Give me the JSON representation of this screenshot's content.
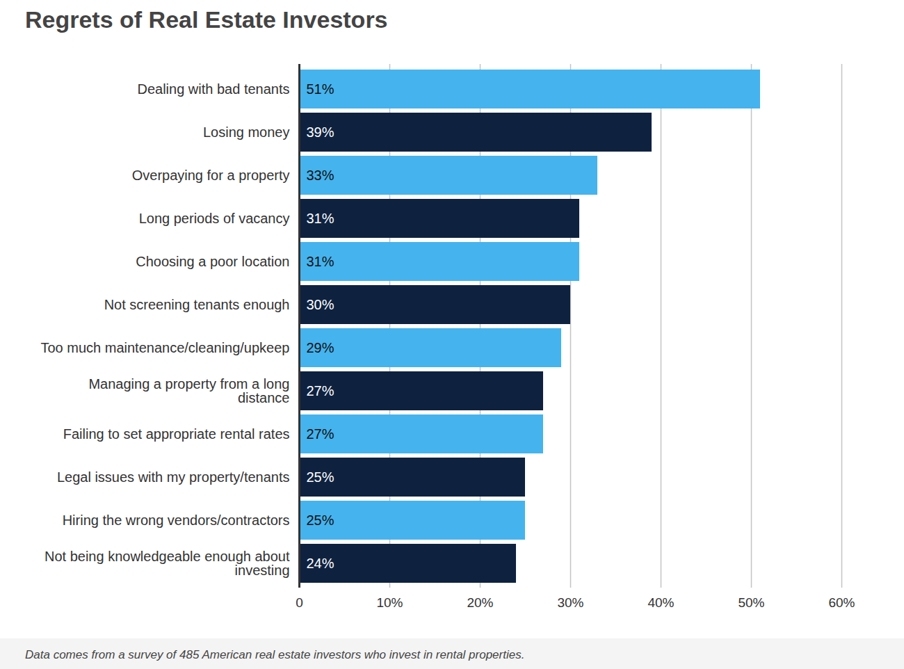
{
  "chart_data": {
    "type": "bar",
    "orientation": "horizontal",
    "title": "Regrets of Real Estate Investors",
    "caption": "Data comes from a survey of 485 American real estate investors who invest in rental properties.",
    "categories": [
      "Dealing with bad tenants",
      "Losing money",
      "Overpaying for a property",
      "Long periods of vacancy",
      "Choosing a poor location",
      "Not screening tenants enough",
      "Too much maintenance/cleaning/upkeep",
      "Managing a property from a long distance",
      "Failing to set appropriate rental rates",
      "Legal issues with my property/tenants",
      "Hiring the wrong vendors/contractors",
      "Not being knowledgeable enough about investing"
    ],
    "values": [
      51,
      39,
      33,
      31,
      31,
      30,
      29,
      27,
      27,
      25,
      25,
      24
    ],
    "value_labels": [
      "51%",
      "39%",
      "33%",
      "31%",
      "31%",
      "30%",
      "29%",
      "27%",
      "27%",
      "25%",
      "25%",
      "24%"
    ],
    "colors": [
      "#45b3ee",
      "#0e2240",
      "#45b3ee",
      "#0e2240",
      "#45b3ee",
      "#0e2240",
      "#45b3ee",
      "#0e2240",
      "#45b3ee",
      "#0e2240",
      "#45b3ee",
      "#0e2240"
    ],
    "xlim": [
      0,
      60
    ],
    "xticks": [
      0,
      {
        "value": 10,
        "label": "10%"
      },
      {
        "value": 20,
        "label": "20%"
      },
      {
        "value": 30,
        "label": "30%"
      },
      {
        "value": 40,
        "label": "40%"
      },
      {
        "value": 50,
        "label": "50%"
      },
      {
        "value": 60,
        "label": "60%"
      }
    ],
    "grid": true,
    "data_labels": true
  }
}
